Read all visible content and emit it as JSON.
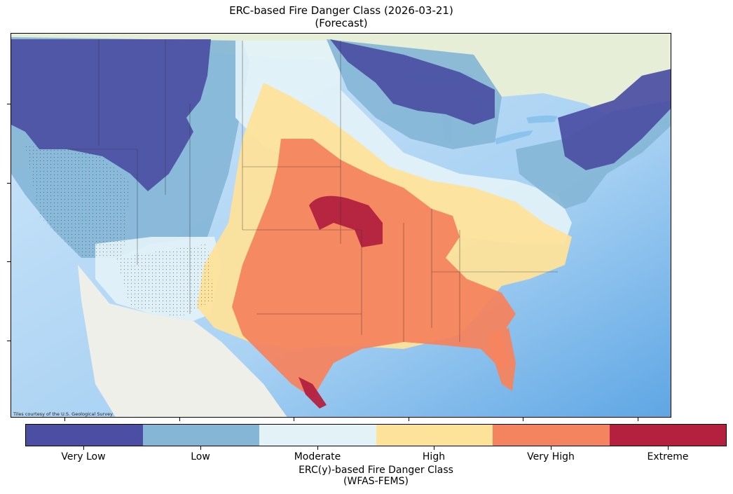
{
  "figure": {
    "title": "ERC-based Fire Danger Class (2026-03-21)",
    "subtitle": "(Forecast)"
  },
  "map": {
    "region": "Contiguous United States",
    "basemap_attribution": "Tiles courtesy of the U.S. Geological Survey"
  },
  "colorbar": {
    "title": "ERC(y)-based Fire Danger Class",
    "subtitle": "(WFAS-FEMS)",
    "classes": [
      {
        "label": "Very Low",
        "color": "#4b4ea3"
      },
      {
        "label": "Low",
        "color": "#86b6d6"
      },
      {
        "label": "Moderate",
        "color": "#e3f2f7"
      },
      {
        "label": "High",
        "color": "#fde29a"
      },
      {
        "label": "Very High",
        "color": "#f4845f"
      },
      {
        "label": "Extreme",
        "color": "#b3213f"
      }
    ]
  },
  "colors": {
    "ocean": "#8fc2ec",
    "ocean_deep": "#5aa3e3",
    "land": "#efeee6",
    "canada": "#e8eedc",
    "mexico": "#eeeeea",
    "lakes": "#8cc3ec"
  }
}
